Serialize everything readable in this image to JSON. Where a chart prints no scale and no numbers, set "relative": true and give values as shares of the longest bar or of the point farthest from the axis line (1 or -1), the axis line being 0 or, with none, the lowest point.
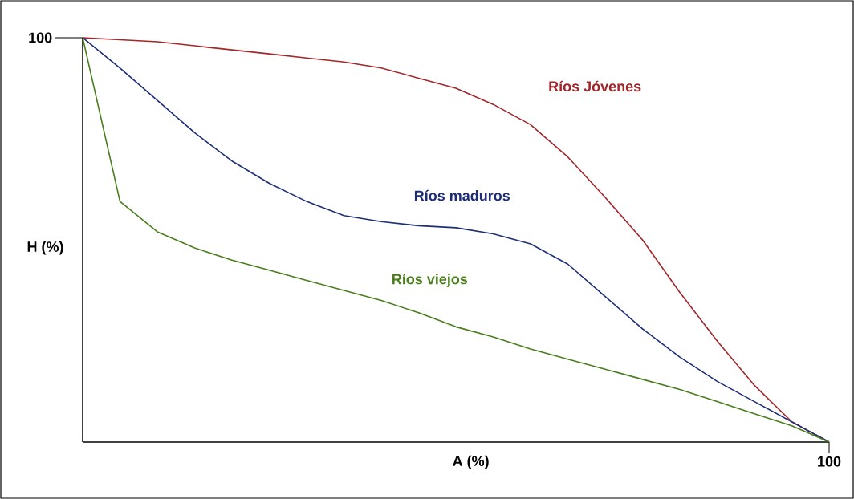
{
  "chart_data": {
    "type": "line",
    "xlabel": "A (%)",
    "ylabel": "H (%)",
    "relative": true,
    "categories": [
      null,
      null,
      null,
      null,
      null,
      null,
      null,
      null,
      null,
      null,
      null,
      null,
      null,
      null,
      null,
      null,
      null,
      null,
      null,
      null,
      null
    ],
    "annotations": [
      "100",
      "100"
    ],
    "line_style": "solid",
    "series": [
      {
        "name": "Ríos Jóvenes",
        "color": "#a3262b",
        "values": [
          1,
          0.995,
          0.99,
          0.98,
          0.97,
          0.96,
          0.95,
          0.94,
          0.925,
          0.9,
          0.875,
          0.835,
          0.785,
          0.705,
          0.605,
          0.5,
          0.37,
          0.25,
          0.14,
          0.05,
          0
        ]
      },
      {
        "name": "Ríos maduros",
        "color": "#1d2e78",
        "values": [
          1,
          0.925,
          0.845,
          0.765,
          0.695,
          0.64,
          0.595,
          0.56,
          0.545,
          0.535,
          0.53,
          0.515,
          0.49,
          0.44,
          0.36,
          0.28,
          0.21,
          0.15,
          0.1,
          0.05,
          0
        ]
      },
      {
        "name": "Ríos viejos",
        "color": "#4a7d1c",
        "values": [
          1,
          0.595,
          0.52,
          0.48,
          0.45,
          0.425,
          0.4,
          0.375,
          0.35,
          0.32,
          0.285,
          0.26,
          0.23,
          0.205,
          0.18,
          0.155,
          0.13,
          0.1,
          0.07,
          0.04,
          0
        ]
      }
    ]
  }
}
